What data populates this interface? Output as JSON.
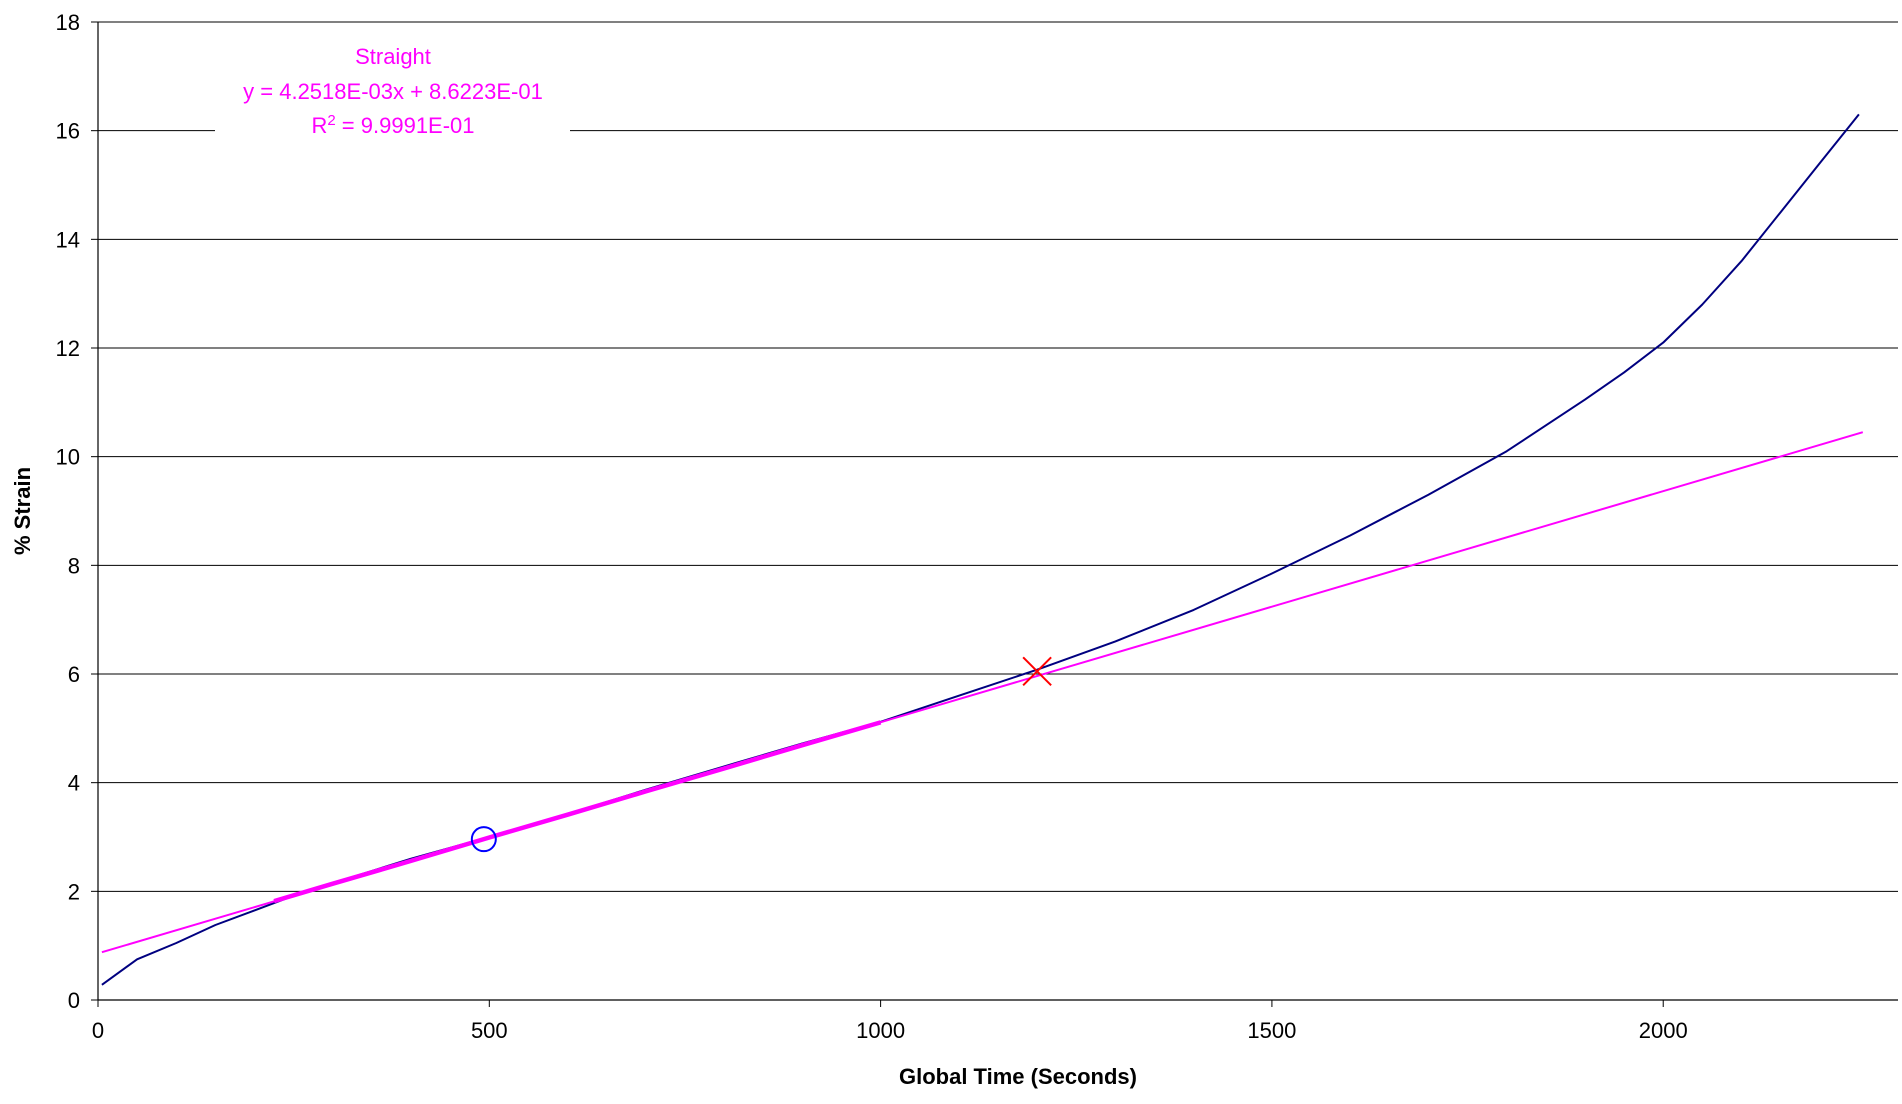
{
  "chart_data": {
    "type": "line",
    "xlabel": "Global Time (Seconds)",
    "ylabel": "% Strain",
    "xlim": [
      0,
      2300
    ],
    "ylim": [
      0,
      18
    ],
    "x_ticks": [
      "0",
      "500",
      "1000",
      "1500",
      "2000"
    ],
    "x_tick_values": [
      0,
      500,
      1000,
      1500,
      2000
    ],
    "y_ticks": [
      "0",
      "2",
      "4",
      "6",
      "8",
      "10",
      "12",
      "14",
      "16",
      "18"
    ],
    "y_tick_values": [
      0,
      2,
      4,
      6,
      8,
      10,
      12,
      14,
      16,
      18
    ],
    "grid": "horizontal",
    "series": [
      {
        "color": "#000080",
        "x": [
          5,
          50,
          100,
          150,
          200,
          250,
          300,
          400,
          500,
          600,
          700,
          800,
          900,
          1000,
          1100,
          1200,
          1300,
          1400,
          1500,
          1600,
          1700,
          1800,
          1900,
          1950,
          2000,
          2050,
          2100,
          2150,
          2200,
          2250
        ],
        "y": [
          0.28,
          0.75,
          1.05,
          1.38,
          1.65,
          1.92,
          2.15,
          2.6,
          3.0,
          3.42,
          3.87,
          4.3,
          4.72,
          5.12,
          5.6,
          6.08,
          6.6,
          7.18,
          7.85,
          8.55,
          9.3,
          10.1,
          11.05,
          11.55,
          12.1,
          12.8,
          13.6,
          14.5,
          15.4,
          16.3
        ]
      },
      {
        "color": "#ff00ff",
        "x": [
          5,
          2255
        ],
        "y": [
          0.88,
          10.45
        ]
      },
      {
        "color": "#ff00ff",
        "emphasis": "thick",
        "x": [
          225,
          300,
          400,
          500,
          600,
          700,
          800,
          900,
          1000
        ],
        "y": [
          1.82,
          2.14,
          2.56,
          2.99,
          3.41,
          3.84,
          4.26,
          4.69,
          5.11
        ]
      }
    ],
    "markers": [
      {
        "shape": "circle",
        "color": "#0000ff",
        "x": 493,
        "y": 2.96
      },
      {
        "shape": "cross",
        "color": "#ff0000",
        "x": 1200,
        "y": 6.05
      }
    ],
    "annotation": {
      "color": "#ff00ff",
      "title": "Straight",
      "equation": "y = 4.2518E-03x + 8.6223E-01",
      "r2_prefix": "R",
      "r2_sup": "2",
      "r2_value": " = 9.9991E-01"
    }
  }
}
